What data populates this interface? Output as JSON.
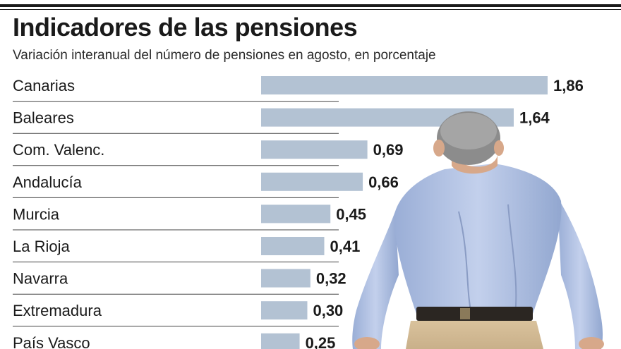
{
  "header": {
    "title": "Indicadores de las pensiones",
    "subtitle": "Variación interanual del número de pensiones en agosto, en porcentaje"
  },
  "chart_data": {
    "type": "bar",
    "orientation": "horizontal",
    "title": "Indicadores de las pensiones",
    "subtitle": "Variación interanual del número de pensiones en agosto, en porcentaje",
    "categories": [
      "Canarias",
      "Baleares",
      "Com. Valenc.",
      "Andalucía",
      "Murcia",
      "La Rioja",
      "Navarra",
      "Extremadura",
      "País Vasco"
    ],
    "values": [
      1.86,
      1.64,
      0.69,
      0.66,
      0.45,
      0.41,
      0.32,
      0.3,
      0.25
    ],
    "value_labels": [
      "1,86",
      "1,64",
      "0,69",
      "0,66",
      "0,45",
      "0,41",
      "0,32",
      "0,30",
      "0,25"
    ],
    "xlim": [
      0,
      1.86
    ],
    "bar_color": "#b3c2d3",
    "grid": false,
    "legend": "none",
    "xlabel": "",
    "ylabel": ""
  }
}
